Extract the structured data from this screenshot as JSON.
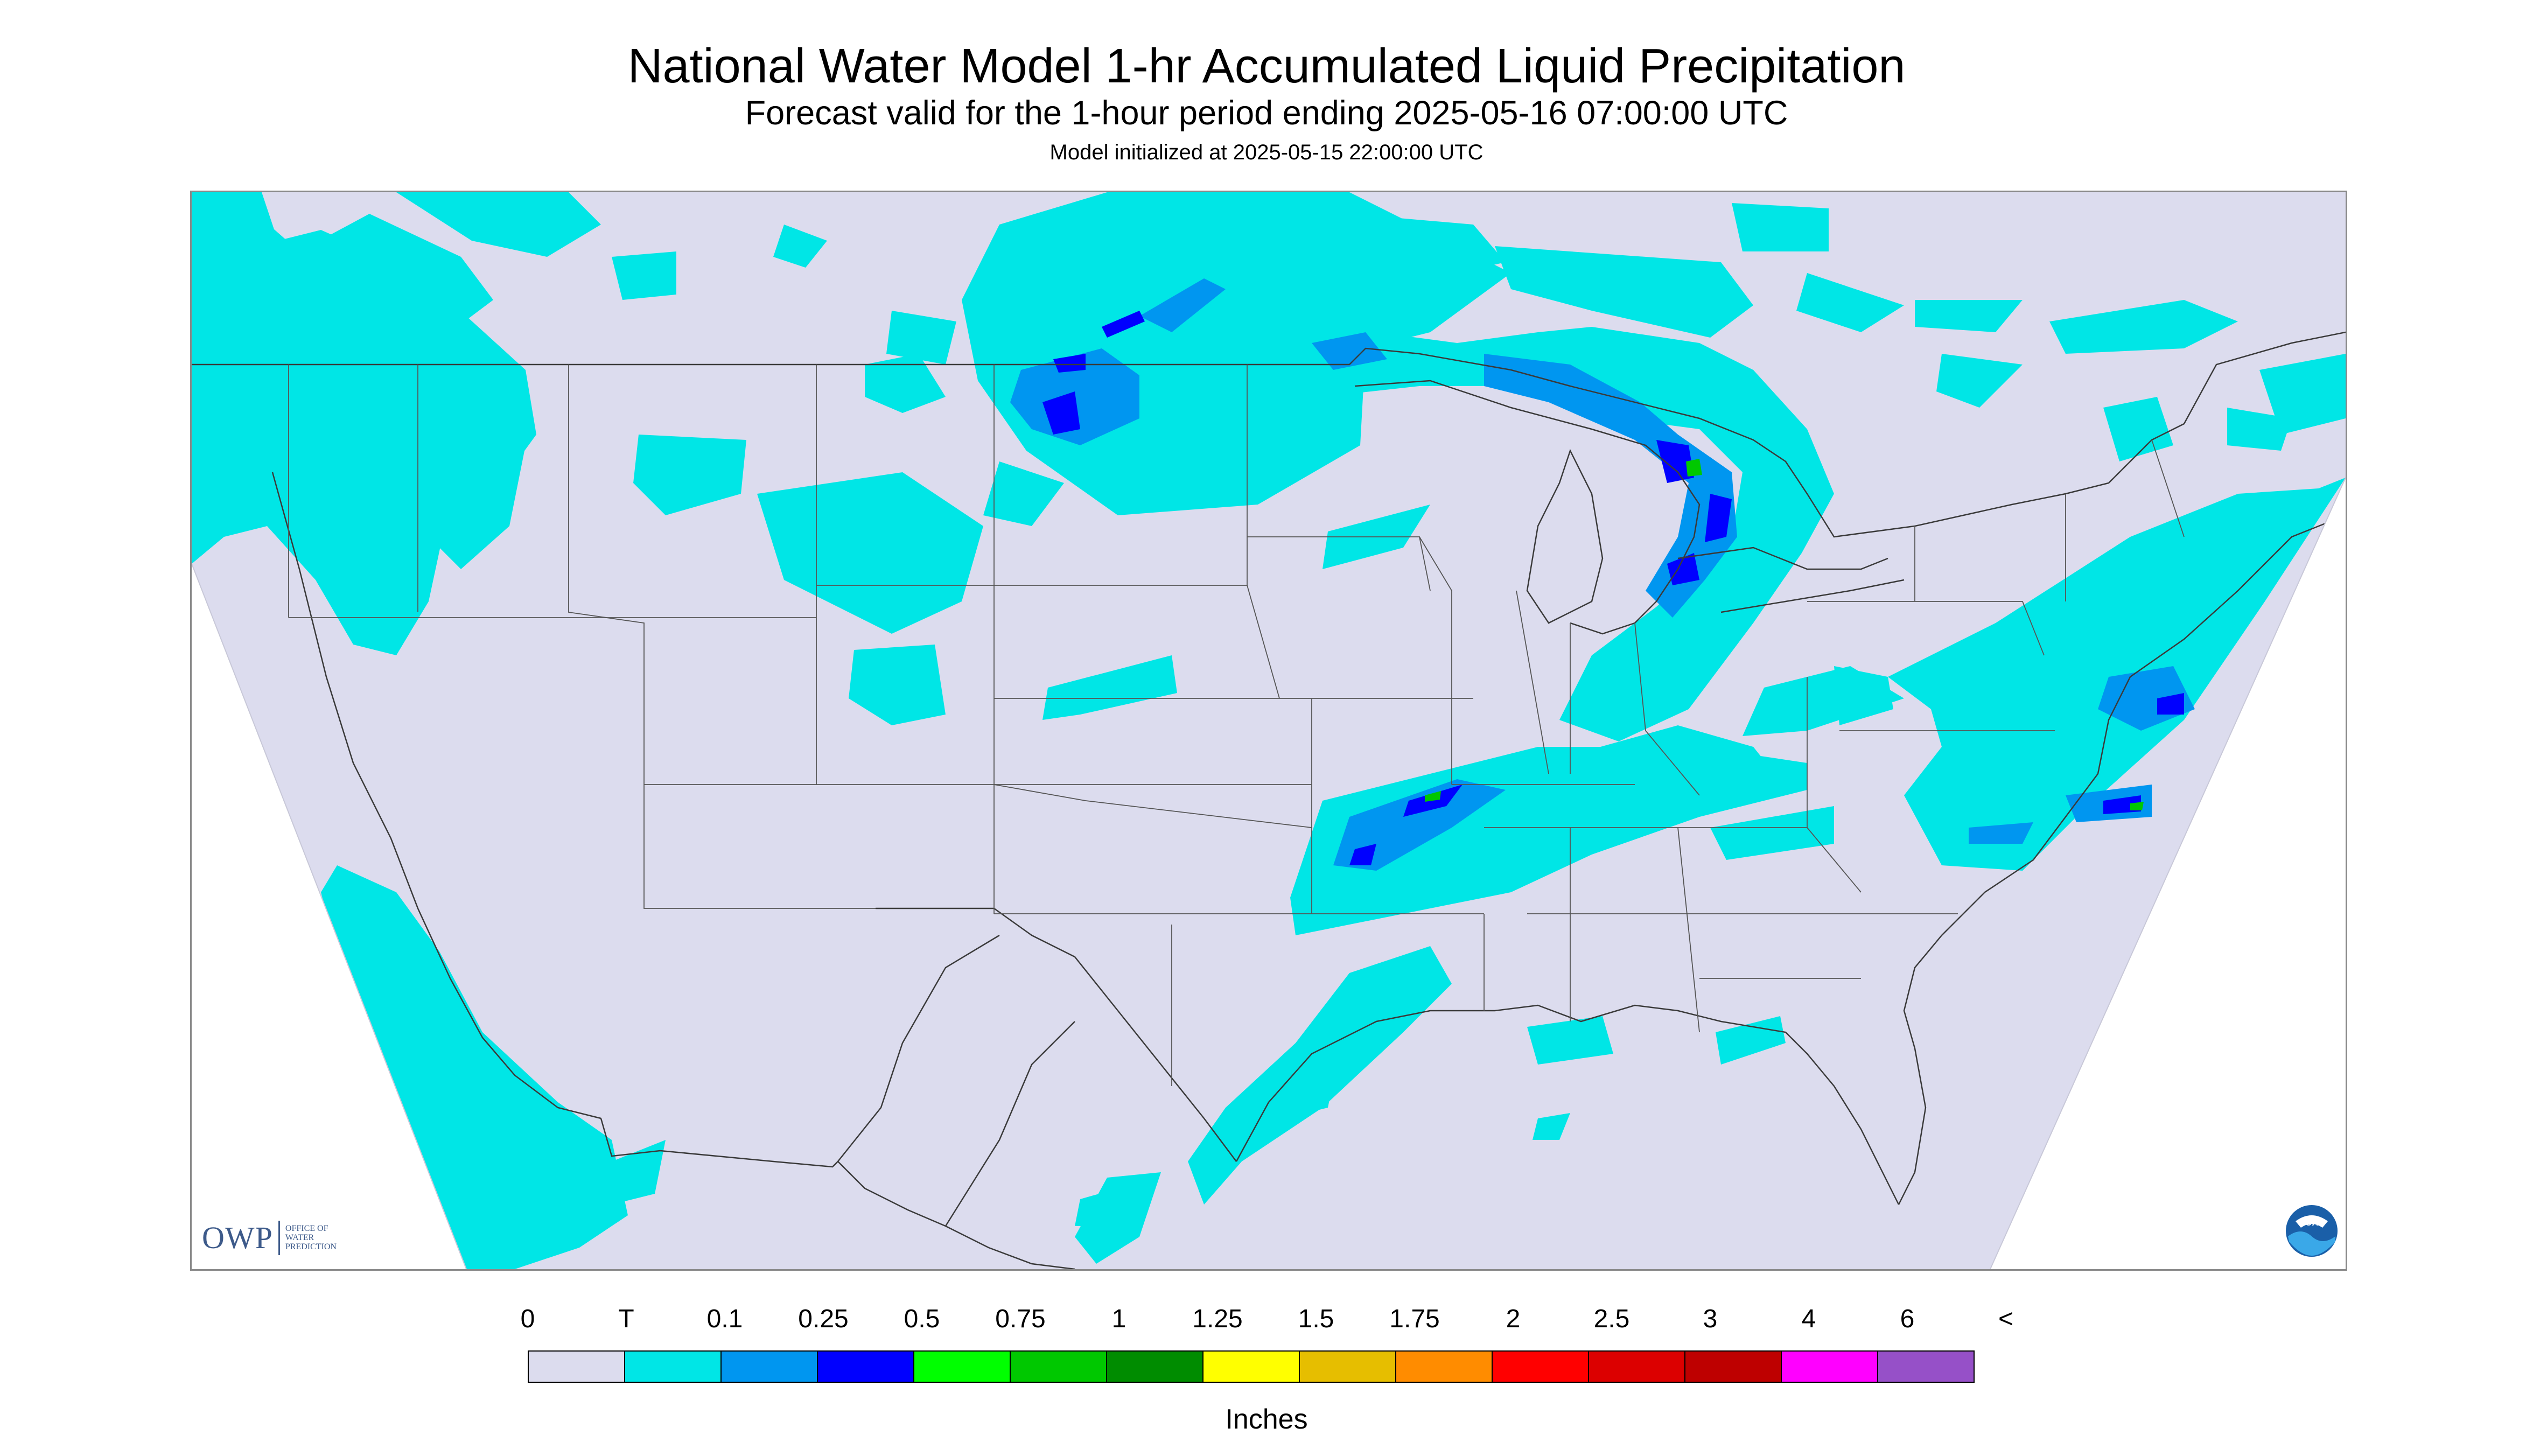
{
  "header": {
    "title": "National Water Model 1-hr Accumulated Liquid Precipitation",
    "subtitle": "Forecast valid for the 1-hour period ending 2025-05-16 07:00:00 UTC",
    "init": "Model initialized at 2025-05-15 22:00:00 UTC"
  },
  "logos": {
    "owp_mark": "OWP",
    "owp_text": [
      "OFFICE OF",
      "WATER",
      "PREDICTION"
    ],
    "noaa_text": "NOAA"
  },
  "colors": {
    "no_precip": "#dcdcee",
    "outside_domain": "#ffffff",
    "boundary": "#3a3a3a"
  },
  "legend": {
    "units": "Inches",
    "ticks": [
      "0",
      "T",
      "0.1",
      "0.25",
      "0.5",
      "0.75",
      "1",
      "1.25",
      "1.5",
      "1.75",
      "2",
      "2.5",
      "3",
      "4",
      "6",
      "<"
    ],
    "colors": [
      "#dcdcee",
      "#00e6e6",
      "#0096f0",
      "#0000ff",
      "#00ff00",
      "#00c800",
      "#008c00",
      "#ffff00",
      "#e6be00",
      "#ff8c00",
      "#ff0000",
      "#dc0000",
      "#be0000",
      "#ff00ff",
      "#9650c8"
    ]
  }
}
